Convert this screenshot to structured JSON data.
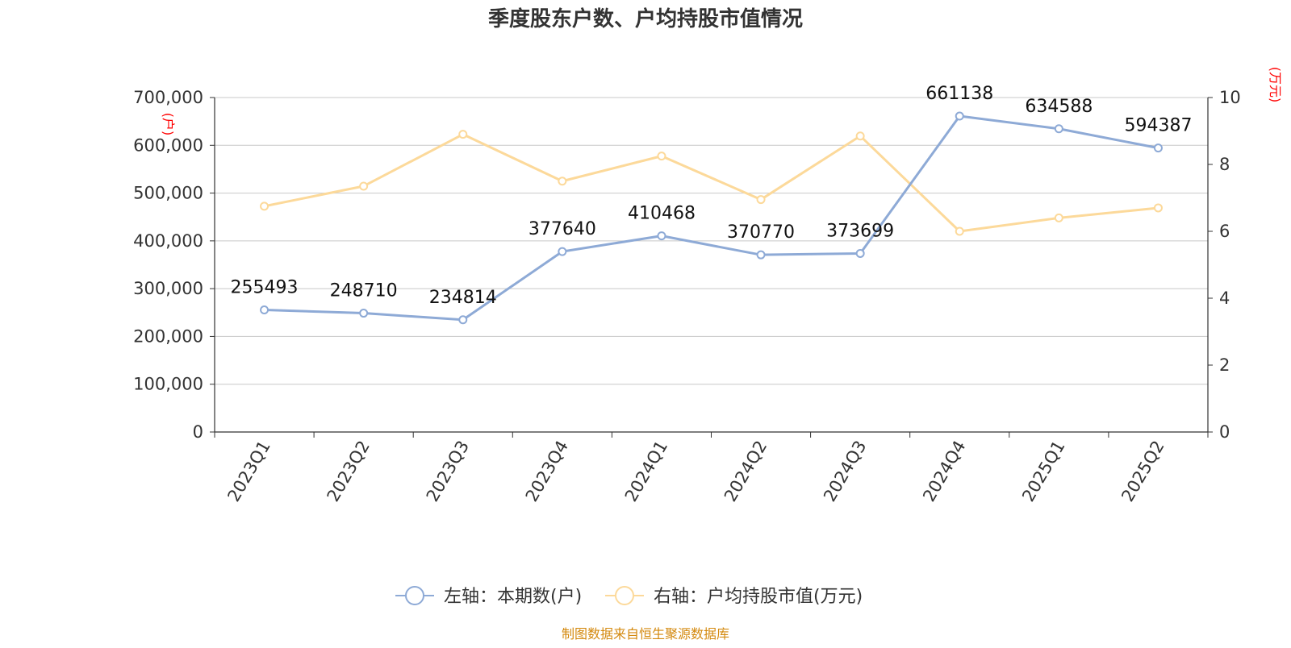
{
  "chart_data": {
    "type": "line",
    "title": "季度股东户数、户均持股市值情况",
    "categories": [
      "2023Q1",
      "2023Q2",
      "2023Q3",
      "2023Q4",
      "2024Q1",
      "2024Q2",
      "2024Q3",
      "2024Q4",
      "2025Q1",
      "2025Q2"
    ],
    "series": [
      {
        "name": "左轴：本期数(户)",
        "axis": "left",
        "color": "#8eaad6",
        "values": [
          255493,
          248710,
          234814,
          377640,
          410468,
          370770,
          373699,
          661138,
          634588,
          594387
        ],
        "labels": [
          "255493",
          "248710",
          "234814",
          "377640",
          "410468",
          "370770",
          "373699",
          "661138",
          "634588",
          "594387"
        ]
      },
      {
        "name": "右轴：户均持股市值(万元)",
        "axis": "right",
        "color": "#fcd99a",
        "values": [
          6.75,
          7.35,
          8.9,
          7.5,
          8.25,
          6.95,
          8.85,
          6.0,
          6.4,
          6.7
        ]
      }
    ],
    "left_axis": {
      "unit": "(户)",
      "ylim": [
        0,
        700000
      ],
      "ticks": [
        {
          "v": 0,
          "label": "0"
        },
        {
          "v": 100000,
          "label": "100,000"
        },
        {
          "v": 200000,
          "label": "200,000"
        },
        {
          "v": 300000,
          "label": "300,000"
        },
        {
          "v": 400000,
          "label": "400,000"
        },
        {
          "v": 500000,
          "label": "500,000"
        },
        {
          "v": 600000,
          "label": "600,000"
        },
        {
          "v": 700000,
          "label": "700,000"
        }
      ]
    },
    "right_axis": {
      "unit": "(万元)",
      "ylim": [
        0,
        10
      ],
      "ticks": [
        {
          "v": 0,
          "label": "0"
        },
        {
          "v": 2,
          "label": "2"
        },
        {
          "v": 4,
          "label": "4"
        },
        {
          "v": 6,
          "label": "6"
        },
        {
          "v": 8,
          "label": "8"
        },
        {
          "v": 10,
          "label": "10"
        }
      ]
    },
    "grid": true,
    "legend_position": "bottom-center",
    "source": "制图数据来自恒生聚源数据库"
  }
}
